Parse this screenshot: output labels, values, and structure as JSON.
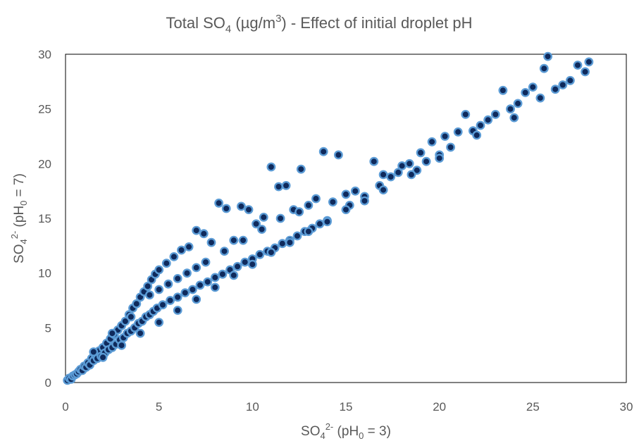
{
  "chart_data": {
    "type": "scatter",
    "title": {
      "pre": "Total SO",
      "sub": "4",
      "mid": " (µg/m",
      "sup": "3",
      "post": ") - Effect of initial droplet pH"
    },
    "xlabel": {
      "pre": "SO",
      "sub1": "4",
      "sup": "2-",
      "mid": " (pH",
      "sub2": "0",
      "post": " = 3)"
    },
    "ylabel": {
      "pre": "SO",
      "sub1": "4",
      "sup": "2-",
      "mid": " (pH",
      "sub2": "0",
      "post": " = 7)"
    },
    "xlim": [
      0,
      30
    ],
    "ylim": [
      0,
      30
    ],
    "xticks": [
      "0",
      "5",
      "10",
      "15",
      "20",
      "25",
      "30"
    ],
    "yticks": [
      "0",
      "5",
      "10",
      "15",
      "20",
      "25",
      "30"
    ],
    "grid": false,
    "marker": {
      "fill": "#0f2a5c",
      "edge": "#5b9bd5"
    },
    "series": [
      {
        "points": [
          [
            0.1,
            0.2
          ],
          [
            0.2,
            0.4
          ],
          [
            0.3,
            0.3
          ],
          [
            0.4,
            0.6
          ],
          [
            0.5,
            0.7
          ],
          [
            0.6,
            0.8
          ],
          [
            0.7,
            1.0
          ],
          [
            0.8,
            1.2
          ],
          [
            0.9,
            1.1
          ],
          [
            1.0,
            1.5
          ],
          [
            1.1,
            1.4
          ],
          [
            1.2,
            1.8
          ],
          [
            1.3,
            1.6
          ],
          [
            1.4,
            2.2
          ],
          [
            1.5,
            2.0
          ],
          [
            1.6,
            2.5
          ],
          [
            1.7,
            2.2
          ],
          [
            1.8,
            2.9
          ],
          [
            1.9,
            2.4
          ],
          [
            2.0,
            3.2
          ],
          [
            2.1,
            2.7
          ],
          [
            2.2,
            3.6
          ],
          [
            2.3,
            3.0
          ],
          [
            2.4,
            4.0
          ],
          [
            2.5,
            3.2
          ],
          [
            2.6,
            4.4
          ],
          [
            2.7,
            3.5
          ],
          [
            2.8,
            4.8
          ],
          [
            2.9,
            3.9
          ],
          [
            3.0,
            5.2
          ],
          [
            3.1,
            4.1
          ],
          [
            3.2,
            5.6
          ],
          [
            3.3,
            4.5
          ],
          [
            3.4,
            6.2
          ],
          [
            3.5,
            4.7
          ],
          [
            3.6,
            6.8
          ],
          [
            3.7,
            5.0
          ],
          [
            3.8,
            7.2
          ],
          [
            3.9,
            5.4
          ],
          [
            4.0,
            7.8
          ],
          [
            4.1,
            5.6
          ],
          [
            4.2,
            8.3
          ],
          [
            4.3,
            6.0
          ],
          [
            4.4,
            8.8
          ],
          [
            4.5,
            6.2
          ],
          [
            4.6,
            9.4
          ],
          [
            4.7,
            6.5
          ],
          [
            4.8,
            9.9
          ],
          [
            4.9,
            6.8
          ],
          [
            5.0,
            10.3
          ],
          [
            5.2,
            7.1
          ],
          [
            5.4,
            10.9
          ],
          [
            5.6,
            7.5
          ],
          [
            5.8,
            11.5
          ],
          [
            6.0,
            7.8
          ],
          [
            6.2,
            12.1
          ],
          [
            6.4,
            8.2
          ],
          [
            6.6,
            12.4
          ],
          [
            6.8,
            8.5
          ],
          [
            7.0,
            13.9
          ],
          [
            7.2,
            8.9
          ],
          [
            7.4,
            13.6
          ],
          [
            7.6,
            9.2
          ],
          [
            7.8,
            12.8
          ],
          [
            8.0,
            9.6
          ],
          [
            8.2,
            16.4
          ],
          [
            8.4,
            9.9
          ],
          [
            8.6,
            15.9
          ],
          [
            8.8,
            10.3
          ],
          [
            9.0,
            13.0
          ],
          [
            9.2,
            10.6
          ],
          [
            9.4,
            16.1
          ],
          [
            9.6,
            11.0
          ],
          [
            9.8,
            15.8
          ],
          [
            10.0,
            11.3
          ],
          [
            10.2,
            14.5
          ],
          [
            10.4,
            11.7
          ],
          [
            10.6,
            15.1
          ],
          [
            10.8,
            12.0
          ],
          [
            11.0,
            19.7
          ],
          [
            11.2,
            12.3
          ],
          [
            11.4,
            17.9
          ],
          [
            11.6,
            12.7
          ],
          [
            11.8,
            18.0
          ],
          [
            12.0,
            13.0
          ],
          [
            12.2,
            15.8
          ],
          [
            12.4,
            13.4
          ],
          [
            12.6,
            19.5
          ],
          [
            12.8,
            13.8
          ],
          [
            13.0,
            16.2
          ],
          [
            13.2,
            14.1
          ],
          [
            13.4,
            16.8
          ],
          [
            13.6,
            14.5
          ],
          [
            13.8,
            21.1
          ],
          [
            14.0,
            14.8
          ],
          [
            14.3,
            16.5
          ],
          [
            14.6,
            20.8
          ],
          [
            15.0,
            17.2
          ],
          [
            15.2,
            16.2
          ],
          [
            15.5,
            17.5
          ],
          [
            16.0,
            17.0
          ],
          [
            16.5,
            20.2
          ],
          [
            16.8,
            18.0
          ],
          [
            17.0,
            19.0
          ],
          [
            17.4,
            18.8
          ],
          [
            17.8,
            19.2
          ],
          [
            18.0,
            19.8
          ],
          [
            18.4,
            20.0
          ],
          [
            18.8,
            19.4
          ],
          [
            19.0,
            21.0
          ],
          [
            19.3,
            20.2
          ],
          [
            19.6,
            22.0
          ],
          [
            20.0,
            20.8
          ],
          [
            20.3,
            22.5
          ],
          [
            20.6,
            21.5
          ],
          [
            21.0,
            22.9
          ],
          [
            21.4,
            24.5
          ],
          [
            21.8,
            23.0
          ],
          [
            22.2,
            23.5
          ],
          [
            22.6,
            24.0
          ],
          [
            23.0,
            24.5
          ],
          [
            23.4,
            26.7
          ],
          [
            23.8,
            25.0
          ],
          [
            24.2,
            25.5
          ],
          [
            24.6,
            26.5
          ],
          [
            25.0,
            27.0
          ],
          [
            25.4,
            26.0
          ],
          [
            25.8,
            29.8
          ],
          [
            26.2,
            26.8
          ],
          [
            26.6,
            27.2
          ],
          [
            27.0,
            27.6
          ],
          [
            27.4,
            29.0
          ],
          [
            27.8,
            28.4
          ],
          [
            28.0,
            29.3
          ],
          [
            25.6,
            28.7
          ],
          [
            24.0,
            24.2
          ],
          [
            22.0,
            22.6
          ],
          [
            20.0,
            20.5
          ],
          [
            18.5,
            19.0
          ],
          [
            17.0,
            17.6
          ],
          [
            2.0,
            2.3
          ],
          [
            3.0,
            3.4
          ],
          [
            4.0,
            4.5
          ],
          [
            5.0,
            5.5
          ],
          [
            6.0,
            6.6
          ],
          [
            7.0,
            7.6
          ],
          [
            8.0,
            8.7
          ],
          [
            9.0,
            9.8
          ],
          [
            10.0,
            10.8
          ],
          [
            11.0,
            11.9
          ],
          [
            12.0,
            12.8
          ],
          [
            13.0,
            13.8
          ],
          [
            14.0,
            14.7
          ],
          [
            15.0,
            15.8
          ],
          [
            16.0,
            16.6
          ],
          [
            4.5,
            8.0
          ],
          [
            5.5,
            9.0
          ],
          [
            6.5,
            10.0
          ],
          [
            7.5,
            11.0
          ],
          [
            8.5,
            12.0
          ],
          [
            9.5,
            13.0
          ],
          [
            10.5,
            14.0
          ],
          [
            11.5,
            15.0
          ],
          [
            12.5,
            15.6
          ],
          [
            3.5,
            6.0
          ],
          [
            2.5,
            4.5
          ],
          [
            1.5,
            2.8
          ],
          [
            5.0,
            8.5
          ],
          [
            6.0,
            9.5
          ],
          [
            7.0,
            10.5
          ]
        ]
      }
    ]
  }
}
